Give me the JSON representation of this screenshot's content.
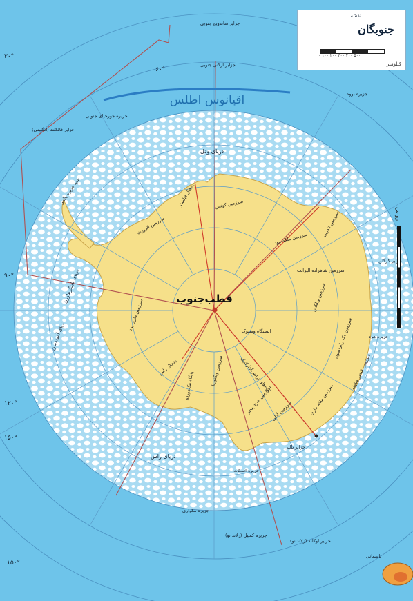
{
  "legend": {
    "subtitle": "نقشه",
    "title": "جنوبگان",
    "scale_text": "۰ ۱۰۰ ۲۰۰ ۳۰۰ ۴۰۰ ۵۰۰",
    "unit": "کیلومتر"
  },
  "side_scale": {
    "label": "رو س"
  },
  "center_label": "قطب‌جنوب",
  "ocean_labels": {
    "atlantic": "اقیانوس اطلس"
  },
  "sea_labels": {
    "weddell": "دریای ودل",
    "ross": "دریای راس",
    "amundsen": "دریای آموندسن",
    "bellingshausen": "دریای بلینگزهاوزن"
  },
  "longitude_labels": {
    "lon_60w": "۶۰°",
    "lon_90w": "۹۰°",
    "lon_120w": "۱۲۰°",
    "lon_150w": "۱۵۰°",
    "lon_30w": "۳۰°",
    "lon_150e": "۱۵۰°"
  },
  "islands": {
    "falkland": "جزایر فالکلند (انگلیس)",
    "south_georgia": "جزیره جورجیای جنوبی",
    "south_sandwich": "جزایر ساندویچ جنوبی",
    "south_orkney": "جزایر ارکنی جنوبی",
    "bouvet": "جزیره بووه",
    "scott": "جزیره اسکات",
    "balleny": "جزایر بالنی",
    "macquarie": "جزیره مکواری",
    "campbell": "جزیره کمپبل (زلاند نو)",
    "auckland": "جزایر اوکلند (زلاند نو)",
    "tasmania": "تاسمانی",
    "kerguelen": "جزایر کرگلن",
    "heard": "جزیره هرد"
  },
  "land_labels": {
    "queen_maud": "سرزمین ملکه مود",
    "enderby": "سرزمین اندربی",
    "wilkes": "سرزمین ویلکس",
    "victoria": "سرزمین ویکتوریا",
    "marie_byrd": "سرزمین ماری برد",
    "ellsworth": "سرزمین الزورث",
    "palmer": "شبه جزیره پالمر",
    "coats": "سرزمین کوتس",
    "mac_robertson": "سرزمین مک رابرتسون",
    "princess_elizabeth": "سرزمین شاهزاده الیزابت",
    "kaiser_wilhelm": "سرزمین قیصر ویلهلم",
    "queen_mary": "سرزمین ملکه ماری",
    "george_v": "سرزمین جرج پنجم",
    "adelie": "سرزمین آدلی",
    "transantarctic": "کوه‌های ترانس‌آنتارکتیک",
    "ross_shelf": "یخچال راس",
    "filchner": "یخچال فیلشنر",
    "vostok": "ایستگاه وستوک",
    "mcmurdo": "پایگاه مک‌موردو"
  },
  "colors": {
    "ocean": "#6ec4ea",
    "ice_ring": "#a9dbf2",
    "land": "#f6e08a",
    "grid": "#5a9bc8",
    "claims": "#b05050",
    "water_text": "#1f6fae"
  }
}
